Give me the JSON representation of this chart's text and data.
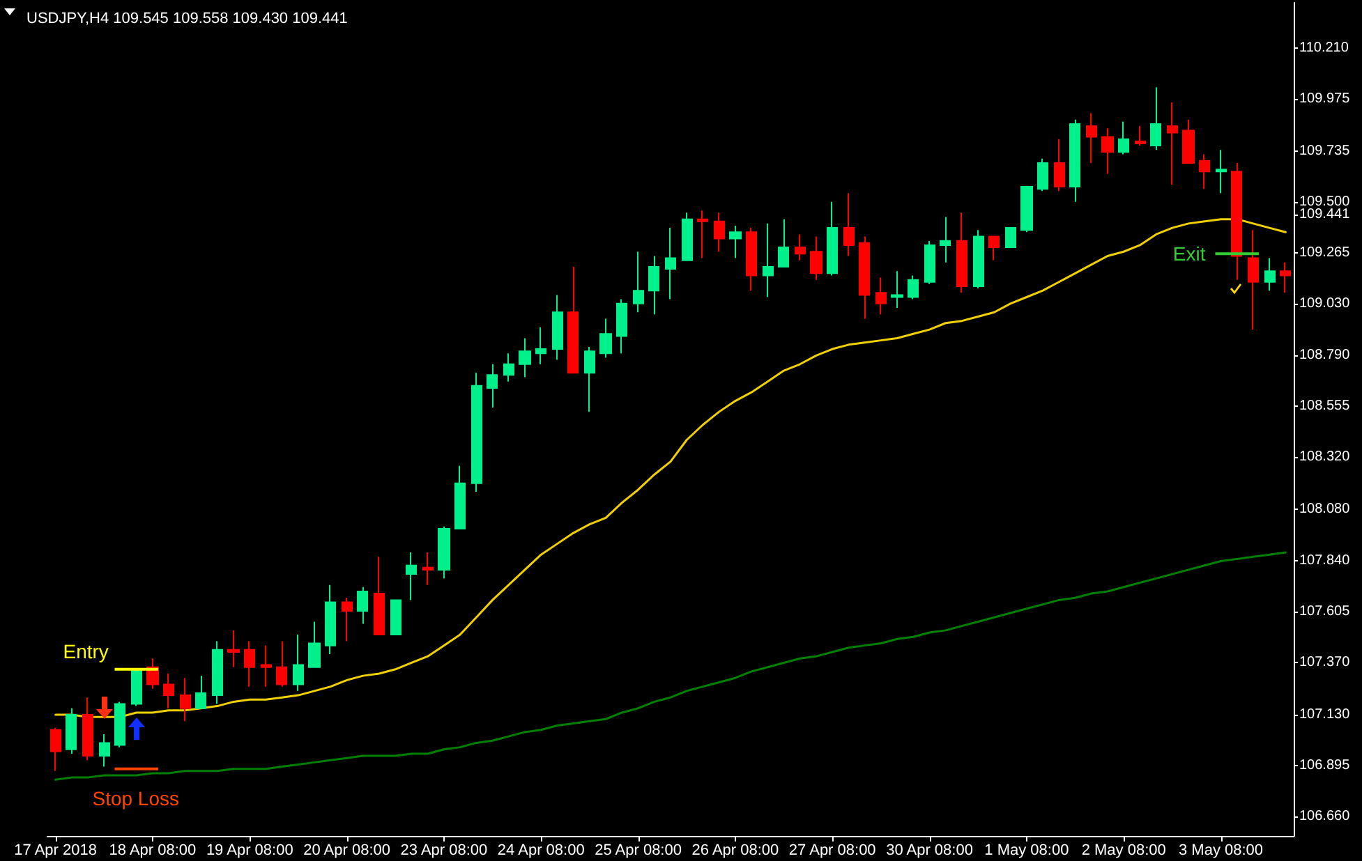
{
  "chart_data": {
    "type": "candlestick",
    "title": "USDJPY,H4 109.545 109.558 109.430 109.441",
    "categories": [
      "17 Apr 2018",
      null,
      null,
      null,
      null,
      null,
      "18 Apr 08:00",
      null,
      null,
      null,
      null,
      null,
      "19 Apr 08:00",
      null,
      null,
      null,
      null,
      null,
      "20 Apr 08:00",
      null,
      null,
      null,
      null,
      null,
      "23 Apr 08:00",
      null,
      null,
      null,
      null,
      null,
      "24 Apr 08:00",
      null,
      null,
      null,
      null,
      null,
      "25 Apr 08:00",
      null,
      null,
      null,
      null,
      null,
      "26 Apr 08:00",
      null,
      null,
      null,
      null,
      null,
      "27 Apr 08:00",
      null,
      null,
      null,
      null,
      null,
      "30 Apr 08:00",
      null,
      null,
      null,
      null,
      null,
      "1 May 08:00",
      null,
      null,
      null,
      null,
      null,
      "2 May 08:00",
      null,
      null,
      null,
      null,
      null,
      "3 May 08:00",
      null,
      null,
      null,
      null
    ],
    "ohlc": [
      [
        107.06,
        107.07,
        106.87,
        106.96
      ],
      [
        106.97,
        107.16,
        106.95,
        107.13
      ],
      [
        107.13,
        107.21,
        106.92,
        106.94
      ],
      [
        106.94,
        107.04,
        106.89,
        107.0
      ],
      [
        106.99,
        107.19,
        106.98,
        107.18
      ],
      [
        107.18,
        107.34,
        107.17,
        107.34
      ],
      [
        107.35,
        107.39,
        107.25,
        107.27
      ],
      [
        107.27,
        107.32,
        107.16,
        107.22
      ],
      [
        107.22,
        107.3,
        107.1,
        107.16
      ],
      [
        107.16,
        107.31,
        107.16,
        107.23
      ],
      [
        107.22,
        107.47,
        107.18,
        107.43
      ],
      [
        107.43,
        107.52,
        107.35,
        107.42
      ],
      [
        107.43,
        107.47,
        107.26,
        107.35
      ],
      [
        107.36,
        107.45,
        107.26,
        107.35
      ],
      [
        107.35,
        107.47,
        107.26,
        107.27
      ],
      [
        107.27,
        107.5,
        107.24,
        107.36
      ],
      [
        107.35,
        107.56,
        107.35,
        107.46
      ],
      [
        107.45,
        107.73,
        107.41,
        107.65
      ],
      [
        107.65,
        107.67,
        107.47,
        107.61
      ],
      [
        107.61,
        107.72,
        107.55,
        107.7
      ],
      [
        107.69,
        107.86,
        107.5,
        107.5
      ],
      [
        107.5,
        107.66,
        107.5,
        107.66
      ],
      [
        107.78,
        107.88,
        107.66,
        107.82
      ],
      [
        107.81,
        107.88,
        107.73,
        107.8
      ],
      [
        107.8,
        108.0,
        107.76,
        107.99
      ],
      [
        107.99,
        108.28,
        107.99,
        108.2
      ],
      [
        108.2,
        108.71,
        108.16,
        108.65
      ],
      [
        108.64,
        108.75,
        108.55,
        108.7
      ],
      [
        108.7,
        108.8,
        108.67,
        108.75
      ],
      [
        108.75,
        108.87,
        108.69,
        108.81
      ],
      [
        108.8,
        108.92,
        108.75,
        108.82
      ],
      [
        108.82,
        109.07,
        108.77,
        108.99
      ],
      [
        108.99,
        109.2,
        108.71,
        108.71
      ],
      [
        108.71,
        108.83,
        108.53,
        108.81
      ],
      [
        108.8,
        108.96,
        108.78,
        108.89
      ],
      [
        108.88,
        109.05,
        108.8,
        109.03
      ],
      [
        109.03,
        109.27,
        108.99,
        109.09
      ],
      [
        109.09,
        109.25,
        108.98,
        109.2
      ],
      [
        109.19,
        109.38,
        109.05,
        109.24
      ],
      [
        109.23,
        109.45,
        109.23,
        109.42
      ],
      [
        109.42,
        109.46,
        109.24,
        109.41
      ],
      [
        109.41,
        109.45,
        109.27,
        109.33
      ],
      [
        109.33,
        109.39,
        109.24,
        109.36
      ],
      [
        109.36,
        109.38,
        109.09,
        109.16
      ],
      [
        109.16,
        109.4,
        109.06,
        109.2
      ],
      [
        109.2,
        109.42,
        109.2,
        109.29
      ],
      [
        109.29,
        109.35,
        109.23,
        109.26
      ],
      [
        109.27,
        109.34,
        109.14,
        109.17
      ],
      [
        109.17,
        109.5,
        109.16,
        109.38
      ],
      [
        109.38,
        109.54,
        109.25,
        109.3
      ],
      [
        109.31,
        109.34,
        108.96,
        109.07
      ],
      [
        109.08,
        109.15,
        108.98,
        109.03
      ],
      [
        109.06,
        109.18,
        109.01,
        109.07
      ],
      [
        109.06,
        109.16,
        109.05,
        109.14
      ],
      [
        109.13,
        109.32,
        109.12,
        109.3
      ],
      [
        109.3,
        109.43,
        109.22,
        109.32
      ],
      [
        109.32,
        109.45,
        109.08,
        109.11
      ],
      [
        109.11,
        109.37,
        109.1,
        109.34
      ],
      [
        109.34,
        109.34,
        109.23,
        109.29
      ],
      [
        109.29,
        109.38,
        109.29,
        109.38
      ],
      [
        109.37,
        109.57,
        109.36,
        109.57
      ],
      [
        109.56,
        109.7,
        109.55,
        109.68
      ],
      [
        109.68,
        109.79,
        109.55,
        109.57
      ],
      [
        109.57,
        109.88,
        109.5,
        109.86
      ],
      [
        109.85,
        109.91,
        109.68,
        109.8
      ],
      [
        109.8,
        109.84,
        109.63,
        109.73
      ],
      [
        109.73,
        109.87,
        109.72,
        109.79
      ],
      [
        109.78,
        109.85,
        109.76,
        109.77
      ],
      [
        109.76,
        110.03,
        109.74,
        109.86
      ],
      [
        109.85,
        109.96,
        109.58,
        109.82
      ],
      [
        109.83,
        109.88,
        109.68,
        109.68
      ],
      [
        109.69,
        109.72,
        109.56,
        109.64
      ],
      [
        109.64,
        109.74,
        109.54,
        109.65
      ],
      [
        109.64,
        109.68,
        109.14,
        109.25
      ],
      [
        109.24,
        109.37,
        108.91,
        109.13
      ],
      [
        109.13,
        109.24,
        109.09,
        109.18
      ],
      [
        109.18,
        109.22,
        109.08,
        109.16
      ]
    ],
    "colors": [
      "#ff0000",
      "#00f08c",
      "#ff0000",
      "#00f08c",
      "#00f08c",
      "#00f08c",
      "#ff0000",
      "#ff0000",
      "#ff0000",
      "#00f08c",
      "#00f08c",
      "#ff0000",
      "#ff0000",
      "#ff0000",
      "#ff0000",
      "#00f08c",
      "#00f08c",
      "#00f08c",
      "#ff0000",
      "#00f08c",
      "#ff0000",
      "#00f08c",
      "#00f08c",
      "#ff0000",
      "#00f08c",
      "#00f08c",
      "#00f08c",
      "#00f08c",
      "#00f08c",
      "#00f08c",
      "#00f08c",
      "#00f08c",
      "#ff0000",
      "#00f08c",
      "#00f08c",
      "#00f08c",
      "#00f08c",
      "#00f08c",
      "#00f08c",
      "#00f08c",
      "#ff0000",
      "#ff0000",
      "#00f08c",
      "#ff0000",
      "#00f08c",
      "#00f08c",
      "#ff0000",
      "#ff0000",
      "#00f08c",
      "#ff0000",
      "#ff0000",
      "#ff0000",
      "#00f08c",
      "#00f08c",
      "#00f08c",
      "#00f08c",
      "#ff0000",
      "#00f08c",
      "#ff0000",
      "#00f08c",
      "#00f08c",
      "#00f08c",
      "#ff0000",
      "#00f08c",
      "#ff0000",
      "#ff0000",
      "#00f08c",
      "#ff0000",
      "#00f08c",
      "#ff0000",
      "#ff0000",
      "#ff0000",
      "#00f08c",
      "#ff0000",
      "#ff0000",
      "#00f08c",
      "#ff0000"
    ],
    "series": [
      {
        "type": "line",
        "color": "#f0d000",
        "values": [
          107.13,
          107.13,
          107.12,
          107.12,
          107.12,
          107.14,
          107.14,
          107.15,
          107.15,
          107.16,
          107.17,
          107.19,
          107.2,
          107.2,
          107.21,
          107.22,
          107.24,
          107.26,
          107.29,
          107.31,
          107.32,
          107.34,
          107.37,
          107.4,
          107.45,
          107.5,
          107.58,
          107.66,
          107.73,
          107.8,
          107.87,
          107.92,
          107.97,
          108.01,
          108.04,
          108.11,
          108.17,
          108.24,
          108.3,
          108.4,
          108.47,
          108.53,
          108.58,
          108.62,
          108.67,
          108.72,
          108.75,
          108.79,
          108.82,
          108.84,
          108.85,
          108.86,
          108.87,
          108.89,
          108.91,
          108.94,
          108.95,
          108.97,
          108.99,
          109.03,
          109.06,
          109.09,
          109.13,
          109.17,
          109.21,
          109.25,
          109.27,
          109.3,
          109.35,
          109.38,
          109.4,
          109.41,
          109.42,
          109.42,
          109.4,
          109.38,
          109.36
        ]
      },
      {
        "type": "line",
        "color": "#008000",
        "values": [
          106.83,
          106.84,
          106.84,
          106.85,
          106.85,
          106.85,
          106.86,
          106.86,
          106.87,
          106.87,
          106.87,
          106.88,
          106.88,
          106.88,
          106.89,
          106.9,
          106.91,
          106.92,
          106.93,
          106.94,
          106.94,
          106.94,
          106.95,
          106.95,
          106.97,
          106.98,
          107.0,
          107.01,
          107.03,
          107.05,
          107.06,
          107.08,
          107.09,
          107.1,
          107.11,
          107.14,
          107.16,
          107.19,
          107.21,
          107.24,
          107.26,
          107.28,
          107.3,
          107.33,
          107.35,
          107.37,
          107.39,
          107.4,
          107.42,
          107.44,
          107.45,
          107.46,
          107.48,
          107.49,
          107.51,
          107.52,
          107.54,
          107.56,
          107.58,
          107.6,
          107.62,
          107.64,
          107.66,
          107.67,
          107.69,
          107.7,
          107.72,
          107.74,
          107.76,
          107.78,
          107.8,
          107.82,
          107.84,
          107.85,
          107.86,
          107.87,
          107.88
        ]
      }
    ],
    "ylim": [
      106.57,
      110.42
    ],
    "yticks": [
      {
        "value": 106.66,
        "label": "106.660"
      },
      106.895,
      {
        "value": 107.13,
        "label": "107.130"
      },
      {
        "value": 107.37,
        "label": "107.370"
      },
      107.605,
      {
        "value": 107.84,
        "label": "107.840"
      },
      {
        "value": 108.08,
        "label": "108.080"
      },
      {
        "value": 108.32,
        "label": "108.320"
      },
      108.555,
      {
        "value": 108.79,
        "label": "108.790"
      },
      {
        "value": 109.03,
        "label": "109.030"
      },
      109.265,
      {
        "value": 109.441,
        "label": "109.441"
      },
      {
        "value": 109.5,
        "label": "109.500"
      },
      109.735,
      109.975,
      {
        "value": 110.21,
        "label": "110.210"
      }
    ],
    "ref_lines": [
      {
        "axis": "y",
        "value": 107.34,
        "label": "Entry",
        "color": "#ffff00"
      },
      {
        "axis": "y",
        "value": 106.88,
        "label": "Stop Loss",
        "color": "#ff4400"
      },
      {
        "axis": "y",
        "value": 109.26,
        "label": "Exit",
        "color": "#33cc33"
      }
    ]
  }
}
